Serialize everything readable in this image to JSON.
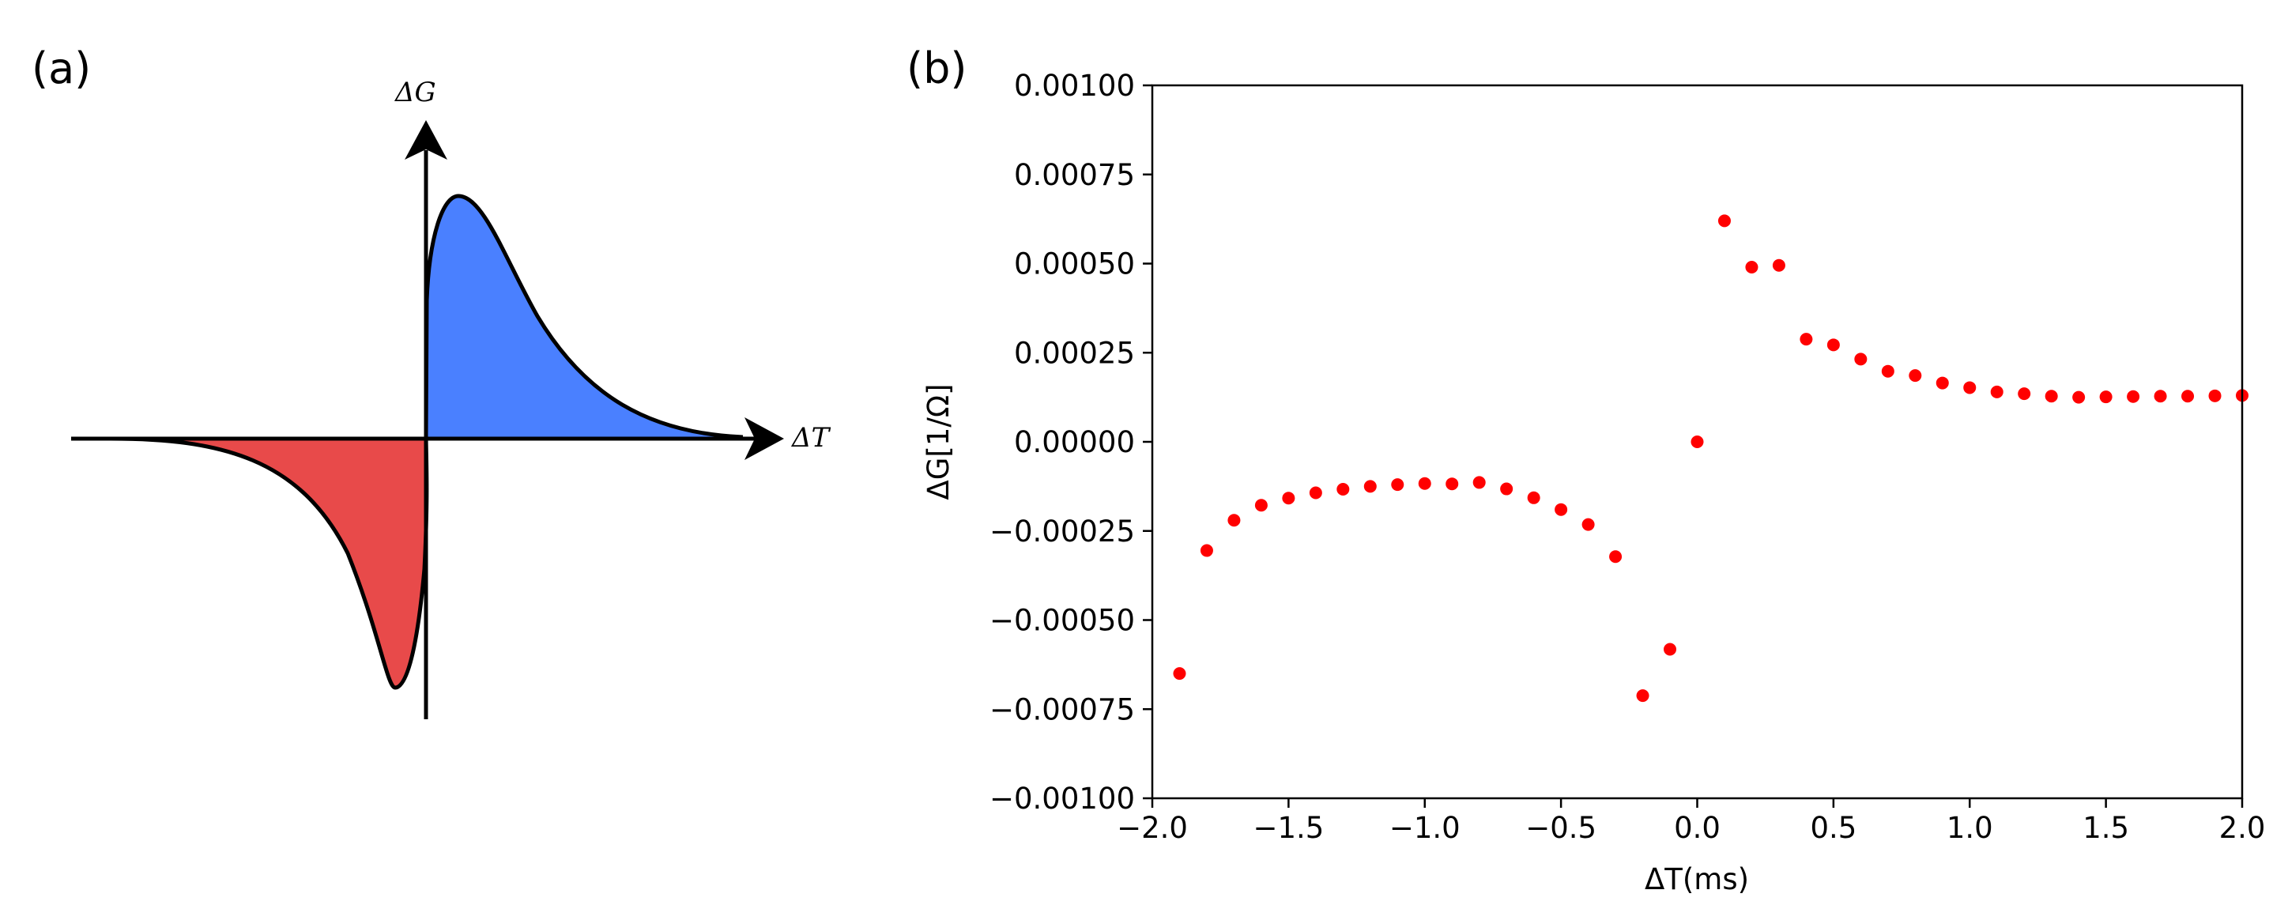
{
  "panels": {
    "a": {
      "label": "(a)",
      "y_axis_label": "ΔG",
      "x_axis_label": "ΔT",
      "colors": {
        "negative_fill": "#e84a4a",
        "positive_fill": "#4a80ff",
        "outline": "#000000"
      }
    },
    "b": {
      "label": "(b)"
    }
  },
  "chart_data": {
    "type": "scatter",
    "title": "",
    "xlabel": "ΔT(ms)",
    "ylabel": "ΔG[1/Ω]",
    "xlim": [
      -2.0,
      2.0
    ],
    "ylim": [
      -0.001,
      0.001
    ],
    "grid": false,
    "marker_color": "#ff0000",
    "xticks": [
      -2.0,
      -1.5,
      -1.0,
      -0.5,
      0.0,
      0.5,
      1.0,
      1.5,
      2.0
    ],
    "xtick_labels": [
      "−2.0",
      "−1.5",
      "−1.0",
      "−0.5",
      "0.0",
      "0.5",
      "1.0",
      "1.5",
      "2.0"
    ],
    "yticks": [
      0.001,
      0.00075,
      0.0005,
      0.00025,
      0.0,
      -0.00025,
      -0.0005,
      -0.00075,
      -0.001
    ],
    "ytick_labels": [
      "0.00100",
      "0.00075",
      "0.00050",
      "0.00025",
      "0.00000",
      "−0.00025",
      "−0.00050",
      "−0.00075",
      "−0.00100"
    ],
    "series": [
      {
        "name": "ΔG",
        "x": [
          -1.9,
          -1.8,
          -1.7,
          -1.6,
          -1.5,
          -1.4,
          -1.3,
          -1.2,
          -1.1,
          -1.0,
          -0.9,
          -0.8,
          -0.7,
          -0.6,
          -0.5,
          -0.4,
          -0.3,
          -0.2,
          -0.1,
          0.0,
          0.1,
          0.2,
          0.3,
          0.4,
          0.5,
          0.6,
          0.7,
          0.8,
          0.9,
          1.0,
          1.1,
          1.2,
          1.3,
          1.4,
          1.5,
          1.6,
          1.7,
          1.8,
          1.9,
          2.0
        ],
        "y": [
          -0.00065,
          -0.000305,
          -0.00022,
          -0.000178,
          -0.000158,
          -0.000143,
          -0.000133,
          -0.000125,
          -0.00012,
          -0.000117,
          -0.000118,
          -0.000114,
          -0.000132,
          -0.000157,
          -0.00019,
          -0.000232,
          -0.000322,
          -0.000712,
          -0.000582,
          0.0,
          0.00062,
          0.00049,
          0.000495,
          0.000288,
          0.000272,
          0.000232,
          0.000198,
          0.000186,
          0.000165,
          0.000152,
          0.00014,
          0.000135,
          0.000128,
          0.000125,
          0.000126,
          0.000127,
          0.000128,
          0.000128,
          0.000129,
          0.00013
        ]
      }
    ]
  }
}
